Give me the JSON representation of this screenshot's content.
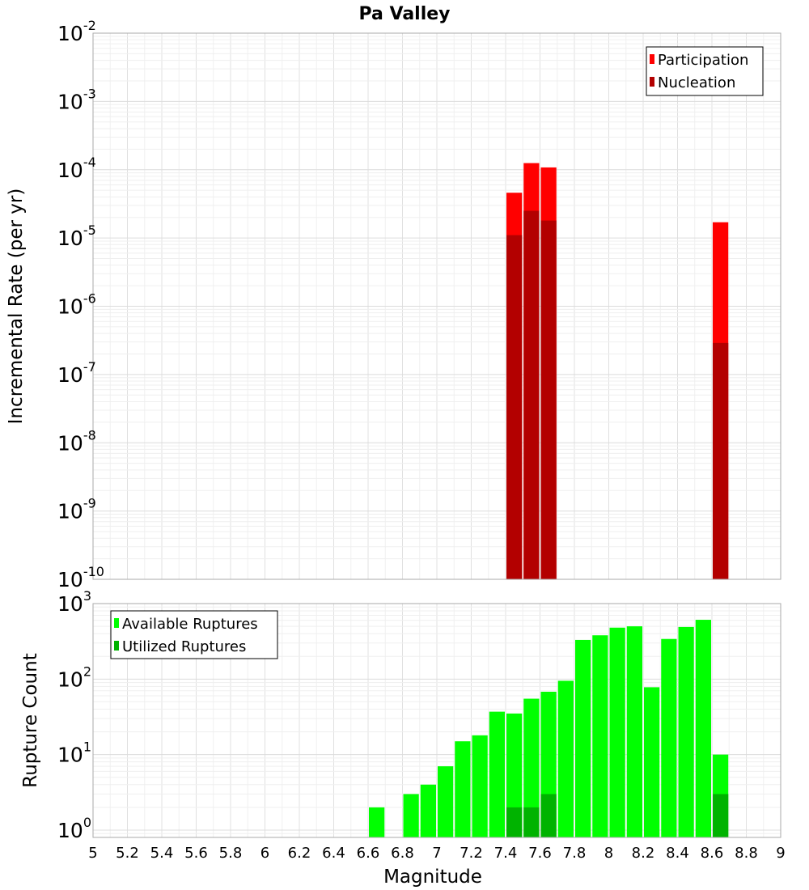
{
  "chart_data": [
    {
      "type": "bar",
      "title": "Pa Valley",
      "xlabel": "",
      "ylabel": "Incremental Rate (per yr)",
      "xlim": [
        5,
        9
      ],
      "ylim": [
        1e-10,
        0.01
      ],
      "yscale": "log",
      "bar_width": 0.1,
      "grid": true,
      "legend_position": "top-right",
      "overlay": true,
      "x": [
        7.45,
        7.55,
        7.65,
        8.65
      ],
      "series": [
        {
          "name": "Participation",
          "color": "#ff0000",
          "values": [
            4.6e-05,
            0.000125,
            0.000108,
            1.7e-05
          ]
        },
        {
          "name": "Nucleation",
          "color": "#b30000",
          "values": [
            1.1e-05,
            2.5e-05,
            1.8e-05,
            2.9e-07
          ]
        }
      ],
      "y_tick_labels": [
        {
          "base": "10",
          "exp": "-10"
        },
        {
          "base": "10",
          "exp": "-9"
        },
        {
          "base": "10",
          "exp": "-8"
        },
        {
          "base": "10",
          "exp": "-7"
        },
        {
          "base": "10",
          "exp": "-6"
        },
        {
          "base": "10",
          "exp": "-5"
        },
        {
          "base": "10",
          "exp": "-4"
        },
        {
          "base": "10",
          "exp": "-3"
        },
        {
          "base": "10",
          "exp": "-2"
        }
      ]
    },
    {
      "type": "bar",
      "xlabel": "Magnitude",
      "ylabel": "Rupture Count",
      "xlim": [
        5,
        9
      ],
      "ylim": [
        0.8,
        1000
      ],
      "yscale": "log",
      "bar_width": 0.1,
      "grid": true,
      "legend_position": "top-left",
      "overlay": true,
      "x": [
        6.65,
        6.85,
        6.95,
        7.05,
        7.15,
        7.25,
        7.35,
        7.45,
        7.55,
        7.65,
        7.75,
        7.85,
        7.95,
        8.05,
        8.15,
        8.25,
        8.35,
        8.45,
        8.55,
        8.65
      ],
      "series": [
        {
          "name": "Available Ruptures",
          "color": "#00ff00",
          "values": [
            2,
            3,
            4,
            7,
            15,
            18,
            37,
            35,
            55,
            68,
            95,
            330,
            380,
            480,
            500,
            78,
            340,
            490,
            610,
            10
          ]
        },
        {
          "name": "Utilized Ruptures",
          "color": "#00b300",
          "values": [
            0,
            0,
            0,
            0,
            0,
            0,
            0,
            2,
            2,
            3,
            0,
            0,
            0,
            0,
            0,
            0,
            0,
            0,
            0,
            3
          ]
        }
      ],
      "y_tick_labels": [
        {
          "base": "10",
          "exp": "0"
        },
        {
          "base": "10",
          "exp": "1"
        },
        {
          "base": "10",
          "exp": "2"
        },
        {
          "base": "10",
          "exp": "3"
        }
      ],
      "x_tick_labels": [
        "5",
        "5.2",
        "5.4",
        "5.6",
        "5.8",
        "6",
        "6.2",
        "6.4",
        "6.6",
        "6.8",
        "7",
        "7.2",
        "7.4",
        "7.6",
        "7.8",
        "8",
        "8.2",
        "8.4",
        "8.6",
        "8.8",
        "9"
      ]
    }
  ]
}
